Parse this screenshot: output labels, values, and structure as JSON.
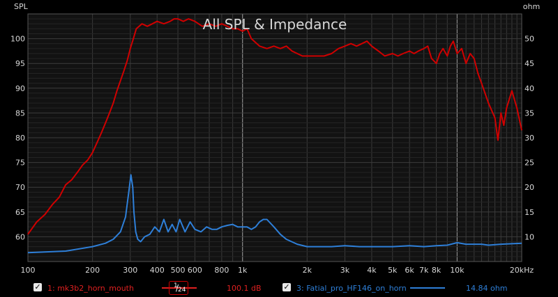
{
  "chart_data": {
    "type": "line",
    "title": "All SPL & Impedance",
    "ylabel": "SPL",
    "y2label": "ohm",
    "xscale": "log",
    "xlim": [
      100,
      20000
    ],
    "ylim": [
      55,
      105
    ],
    "y2lim": [
      5,
      55
    ],
    "x_ticks": [
      {
        "v": 100,
        "l": "100"
      },
      {
        "v": 200,
        "l": "200"
      },
      {
        "v": 300,
        "l": "300"
      },
      {
        "v": 400,
        "l": "400"
      },
      {
        "v": 500,
        "l": "500"
      },
      {
        "v": 600,
        "l": "600"
      },
      {
        "v": 800,
        "l": "800"
      },
      {
        "v": 1000,
        "l": "1k"
      },
      {
        "v": 2000,
        "l": "2k"
      },
      {
        "v": 3000,
        "l": "3k"
      },
      {
        "v": 4000,
        "l": "4k"
      },
      {
        "v": 5000,
        "l": "5k"
      },
      {
        "v": 6000,
        "l": "6k"
      },
      {
        "v": 7000,
        "l": "7k"
      },
      {
        "v": 8000,
        "l": "8k"
      },
      {
        "v": 10000,
        "l": "10k"
      },
      {
        "v": 20000,
        "l": "20kHz"
      }
    ],
    "y_ticks": [
      60,
      65,
      70,
      75,
      80,
      85,
      90,
      95,
      100
    ],
    "y2_ticks": [
      10,
      15,
      20,
      25,
      30,
      35,
      40,
      45,
      50
    ],
    "series": [
      {
        "name": "1: mk3b2_horn_mouth",
        "axis": "left",
        "color": "#d00000",
        "x": [
          100,
          110,
          120,
          130,
          140,
          150,
          160,
          170,
          180,
          190,
          200,
          210,
          220,
          230,
          240,
          250,
          260,
          270,
          280,
          290,
          300,
          310,
          320,
          340,
          360,
          380,
          400,
          430,
          460,
          480,
          500,
          530,
          560,
          600,
          650,
          700,
          750,
          800,
          850,
          900,
          950,
          1000,
          1050,
          1100,
          1200,
          1300,
          1400,
          1500,
          1600,
          1700,
          1800,
          1900,
          2000,
          2200,
          2400,
          2600,
          2800,
          3000,
          3200,
          3400,
          3600,
          3800,
          4000,
          4300,
          4600,
          5000,
          5300,
          5600,
          6000,
          6300,
          6600,
          7000,
          7300,
          7600,
          8000,
          8300,
          8600,
          9000,
          9300,
          9600,
          10000,
          10500,
          11000,
          11500,
          12000,
          12500,
          13000,
          14000,
          15000,
          15500,
          16000,
          16500,
          17000,
          18000,
          19000,
          20000
        ],
        "values": [
          60.5,
          63,
          64.5,
          66.5,
          68,
          70.5,
          71.5,
          73,
          74.5,
          75.5,
          77,
          79,
          81,
          83,
          85,
          87,
          89.5,
          91.5,
          93.5,
          95.5,
          98,
          100,
          102,
          103,
          102.5,
          103,
          103.5,
          103,
          103.5,
          104,
          104,
          103.5,
          104,
          103.5,
          102.5,
          103,
          102.5,
          103,
          102.5,
          102,
          102,
          101.5,
          102,
          100,
          98.5,
          98,
          98.5,
          98,
          98.5,
          97.5,
          97,
          96.5,
          96.5,
          96.5,
          96.5,
          97,
          98,
          98.5,
          99,
          98.5,
          99,
          99.5,
          98.5,
          97.5,
          96.5,
          97,
          96.5,
          97,
          97.5,
          97,
          97.5,
          98,
          98.5,
          96,
          95,
          97,
          98,
          96.5,
          98.5,
          99.5,
          97,
          98,
          95,
          97,
          96,
          93,
          91,
          87,
          84,
          79.5,
          85,
          82.5,
          86,
          89.5,
          86,
          81.5
        ]
      },
      {
        "name": "3: Fatial_pro_HF146_on_horn",
        "axis": "right",
        "color": "#2e7fd8",
        "x": [
          100,
          150,
          200,
          230,
          250,
          270,
          285,
          295,
          302,
          308,
          312,
          318,
          325,
          335,
          350,
          370,
          390,
          410,
          430,
          450,
          470,
          490,
          510,
          540,
          570,
          600,
          640,
          680,
          720,
          760,
          800,
          850,
          900,
          950,
          1000,
          1050,
          1100,
          1150,
          1200,
          1250,
          1300,
          1400,
          1500,
          1600,
          1800,
          2000,
          2300,
          2600,
          3000,
          3500,
          4000,
          5000,
          6000,
          7000,
          8000,
          9000,
          10000,
          11000,
          12000,
          13000,
          14000,
          16000,
          18000,
          20000
        ],
        "values": [
          6.8,
          7.1,
          8.0,
          8.7,
          9.5,
          11,
          14,
          19,
          22.5,
          20,
          15,
          11,
          9.5,
          9,
          10,
          10.5,
          12,
          11,
          13.5,
          11,
          12.5,
          11,
          13.5,
          11,
          13,
          11.5,
          11,
          12,
          11.5,
          11.5,
          12,
          12.3,
          12.5,
          12,
          12,
          12,
          11.5,
          12,
          13,
          13.5,
          13.5,
          12,
          10.5,
          9.5,
          8.5,
          8,
          8,
          8,
          8.2,
          8,
          8,
          8,
          8.2,
          8,
          8.2,
          8.3,
          8.8,
          8.5,
          8.5,
          8.5,
          8.3,
          8.5,
          8.6,
          8.7
        ]
      }
    ]
  },
  "legend": {
    "item1": {
      "label": "1: mk3b2_horn_mouth",
      "value": "100.1 dB",
      "color": "#e02020"
    },
    "smoothing": {
      "num": "1",
      "den": "24"
    },
    "item2": {
      "label": "3: Fatial_pro_HF146_on_horn",
      "value": "14.84 ohm",
      "color": "#2e7fd8"
    }
  }
}
